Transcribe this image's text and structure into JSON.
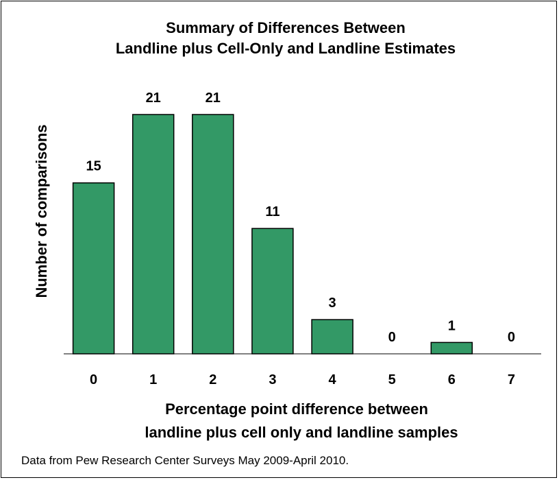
{
  "chart_data": {
    "type": "bar",
    "title_lines": [
      "Summary of Differences Between",
      "Landline plus Cell-Only and Landline Estimates"
    ],
    "xlabel_lines": [
      "Percentage point difference between",
      "landline plus cell only and landline samples"
    ],
    "ylabel": "Number of comparisons",
    "categories": [
      "0",
      "1",
      "2",
      "3",
      "4",
      "5",
      "6",
      "7"
    ],
    "values": [
      15,
      21,
      21,
      11,
      3,
      0,
      1,
      0
    ],
    "ylim": [
      0,
      21
    ],
    "grid": false,
    "bar_color": "#339966",
    "bar_edge_color": "#000000"
  },
  "footnote": "Data from Pew Research Center Surveys May 2009-April 2010."
}
